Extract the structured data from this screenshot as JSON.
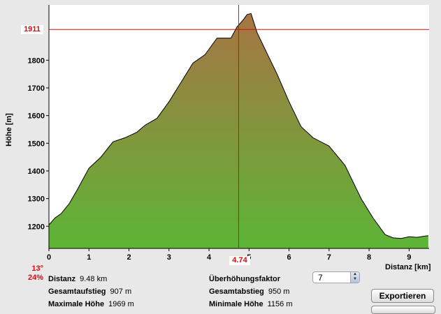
{
  "chart_data": {
    "type": "area",
    "xlabel": "Distanz [km]",
    "ylabel": "Höhe [m]",
    "xlim": [
      0,
      9.5
    ],
    "ylim": [
      1120,
      2000
    ],
    "x_ticks": [
      "0",
      "1",
      "2",
      "3",
      "4",
      "5",
      "6",
      "7",
      "8",
      "9"
    ],
    "y_ticks": [
      "1200",
      "1300",
      "1400",
      "1500",
      "1600",
      "1700",
      "1800"
    ],
    "grid": false,
    "x": [
      0,
      0.15,
      0.3,
      0.5,
      0.7,
      1.0,
      1.3,
      1.6,
      1.9,
      2.2,
      2.4,
      2.7,
      3.0,
      3.3,
      3.6,
      3.9,
      4.1,
      4.2,
      4.35,
      4.55,
      4.7,
      4.85,
      4.95,
      5.05,
      5.2,
      5.4,
      5.7,
      6.0,
      6.3,
      6.6,
      7.0,
      7.4,
      7.8,
      8.1,
      8.4,
      8.6,
      8.8,
      9.0,
      9.2,
      9.4,
      9.48
    ],
    "y": [
      1205,
      1230,
      1245,
      1280,
      1330,
      1410,
      1450,
      1505,
      1520,
      1540,
      1565,
      1590,
      1650,
      1720,
      1790,
      1820,
      1860,
      1880,
      1880,
      1880,
      1920,
      1945,
      1965,
      1969,
      1900,
      1840,
      1750,
      1650,
      1560,
      1520,
      1490,
      1420,
      1300,
      1230,
      1170,
      1158,
      1156,
      1162,
      1160,
      1165,
      1166
    ]
  },
  "cursor": {
    "elevation": "1911",
    "distance": "4.74"
  },
  "slope": {
    "degrees": "13°",
    "percent": "24%"
  },
  "stats": {
    "distance_label": "Distanz",
    "distance_value": "9.48 km",
    "ascent_label": "Gesamtaufstieg",
    "ascent_value": "907 m",
    "max_label": "Maximale Höhe",
    "max_value": "1969 m",
    "exaggeration_label": "Überhöhungsfaktor",
    "exaggeration_value": "7",
    "descent_label": "Gesamtabstieg",
    "descent_value": "950 m",
    "min_label": "Minimale Höhe",
    "min_value": "1156 m"
  },
  "buttons": {
    "export": "Exportieren"
  },
  "colors": {
    "fill_top": "#a77544",
    "fill_bottom": "#5db536",
    "cursor": "#d01010",
    "outline": "#000000"
  }
}
